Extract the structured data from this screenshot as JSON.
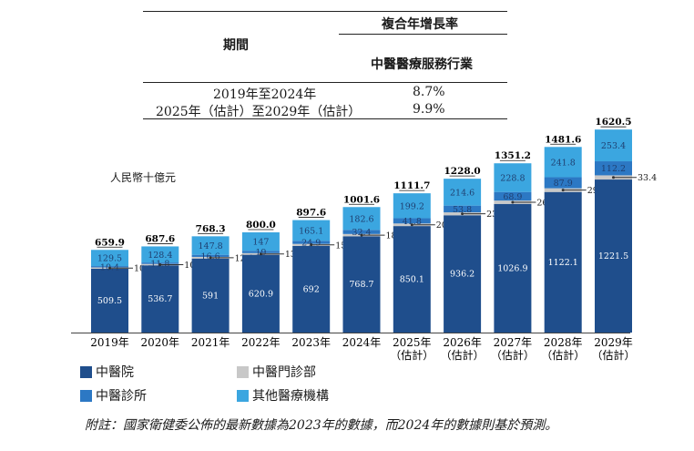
{
  "table": {
    "period_header": "期間",
    "cagr_header": "複合年增長率",
    "industry_header": "中醫醫療服務行業",
    "rows": [
      {
        "period": "2019年至2024年",
        "value": "8.7%"
      },
      {
        "period": "2025年（估計）至2029年（估計）",
        "value": "9.9%"
      }
    ]
  },
  "unit_label": "人民幣十億元",
  "legend": [
    {
      "label": "中醫院",
      "color": "#1f4e8c"
    },
    {
      "label": "中醫門診部",
      "color": "#c8c8c8"
    },
    {
      "label": "中醫診所",
      "color": "#2c78c4"
    },
    {
      "label": "其他醫療機構",
      "color": "#3ba6e0"
    }
  ],
  "footnote": "附註：國家衛健委公佈的最新數據為2023年的數據，而2024年的數據則基於預測。",
  "chart_data": {
    "type": "bar",
    "stacked": true,
    "categories": [
      "2019年",
      "2020年",
      "2021年",
      "2022年",
      "2023年",
      "2024年",
      "2025年",
      "2026年",
      "2027年",
      "2028年",
      "2029年"
    ],
    "category_sublabels": [
      "",
      "",
      "",
      "",
      "",
      "",
      "（估計）",
      "（估計）",
      "（估計）",
      "（估計）",
      "（估計）"
    ],
    "totals": [
      659.9,
      687.6,
      768.3,
      800.0,
      897.6,
      1001.6,
      1111.7,
      1228.0,
      1351.2,
      1481.6,
      1620.5
    ],
    "series": [
      {
        "name": "中醫院",
        "values": [
          509.5,
          536.7,
          591.0,
          620.9,
          692.0,
          768.7,
          850.1,
          936.2,
          1026.9,
          1122.1,
          1221.5
        ]
      },
      {
        "name": "中醫門診部",
        "values": [
          10.5,
          10.7,
          12.9,
          13.1,
          15.6,
          18.0,
          20.6,
          23.4,
          26.5,
          29.8,
          33.4
        ]
      },
      {
        "name": "中醫診所",
        "values": [
          10.4,
          11.8,
          16.6,
          19.0,
          24.9,
          32.4,
          41.8,
          53.8,
          68.9,
          87.9,
          112.2
        ]
      },
      {
        "name": "其他醫療機構",
        "values": [
          129.5,
          128.4,
          147.8,
          147.0,
          165.1,
          182.6,
          199.2,
          214.6,
          228.8,
          241.8,
          253.4
        ]
      }
    ],
    "ylabel": "人民幣十億元",
    "ylim": [
      0,
      1650
    ]
  }
}
